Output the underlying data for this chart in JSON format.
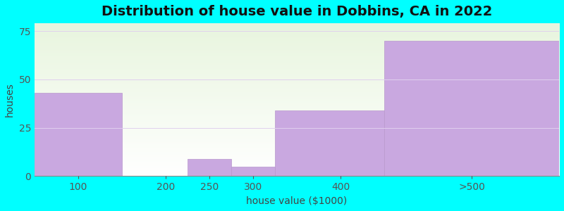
{
  "title": "Distribution of house value in Dobbins, CA in 2022",
  "xlabel": "house value ($1000)",
  "ylabel": "houses",
  "bar_heights": [
    43,
    0,
    9,
    5,
    34,
    70
  ],
  "bar_lefts": [
    50,
    150,
    225,
    275,
    325,
    450
  ],
  "bar_rights": [
    150,
    225,
    275,
    325,
    450,
    650
  ],
  "bar_color": "#c9a8e0",
  "bar_edge_color": "#b898cc",
  "yticks": [
    0,
    25,
    50,
    75
  ],
  "ylim": [
    0,
    79
  ],
  "background_color": "#00ffff",
  "plot_bg_colors": [
    "#dff0d8",
    "#eef7e8",
    "#f5fbf0",
    "#fafdf8",
    "#ffffff"
  ],
  "title_fontsize": 14,
  "axis_label_fontsize": 10,
  "tick_fontsize": 10,
  "xtick_positions": [
    100,
    200,
    250,
    300,
    400,
    550
  ],
  "xtick_labels": [
    "100",
    "200",
    "250",
    "300",
    "400",
    ">500"
  ],
  "xlim": [
    50,
    650
  ]
}
